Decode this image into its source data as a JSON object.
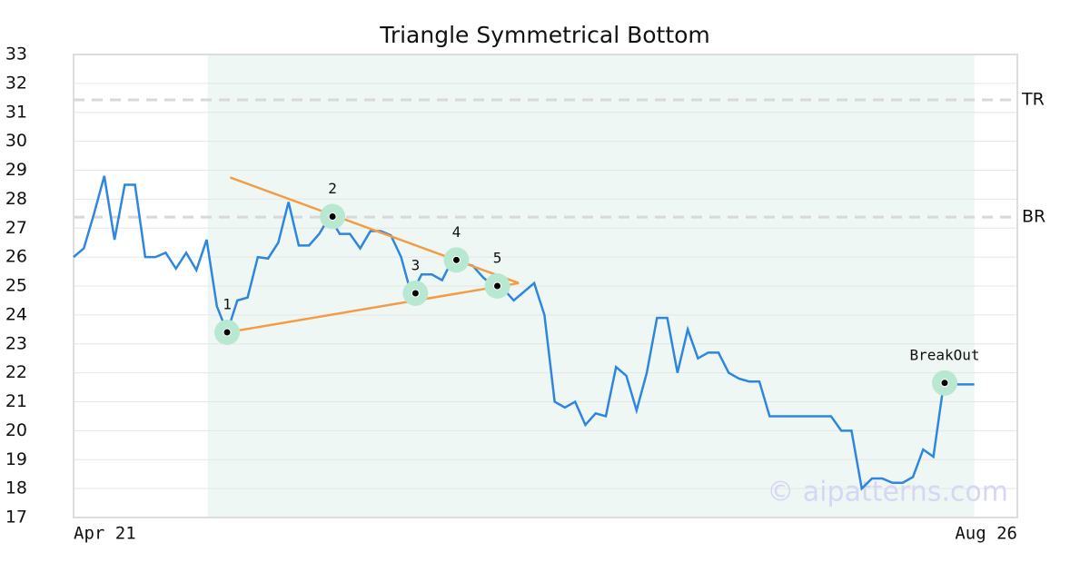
{
  "chart_data": {
    "type": "line",
    "title": "Triangle Symmetrical Bottom",
    "x": [
      0,
      1,
      2,
      3,
      4,
      5,
      6,
      7,
      8,
      9,
      10,
      11,
      12,
      13,
      14,
      15,
      16,
      17,
      18,
      19,
      20,
      21,
      22,
      23,
      24,
      25,
      26,
      27,
      28,
      29,
      30,
      31,
      32,
      33,
      34,
      35,
      36,
      37,
      38,
      39,
      40,
      41,
      42,
      43,
      44,
      45,
      46,
      47,
      48,
      49,
      50,
      51,
      52,
      53,
      54,
      55,
      56,
      57,
      58,
      59,
      60,
      61,
      62,
      63,
      64,
      65,
      66,
      67,
      68,
      69,
      70,
      71,
      72,
      73,
      74,
      75,
      76,
      77,
      78,
      79,
      80,
      81,
      82,
      83,
      84,
      85,
      86,
      87,
      88
    ],
    "values": [
      26.0,
      26.3,
      27.5,
      28.8,
      26.6,
      28.5,
      28.5,
      26.0,
      26.0,
      26.15,
      25.6,
      26.15,
      25.55,
      26.6,
      24.3,
      23.4,
      24.5,
      24.6,
      26.0,
      25.95,
      26.5,
      27.9,
      26.4,
      26.4,
      26.8,
      27.4,
      26.8,
      26.8,
      26.3,
      26.9,
      26.9,
      26.75,
      26.0,
      24.7,
      25.4,
      25.4,
      25.2,
      25.9,
      25.8,
      25.7,
      25.3,
      25.0,
      24.9,
      24.5,
      24.8,
      25.1,
      24.0,
      21.0,
      20.8,
      21.0,
      20.2,
      20.6,
      20.5,
      22.2,
      21.9,
      20.7,
      22.0,
      23.9,
      23.9,
      22.0,
      23.5,
      22.5,
      22.7,
      22.7,
      22.0,
      21.8,
      21.7,
      21.7,
      20.5,
      20.5,
      20.5,
      20.5,
      20.5,
      20.5,
      20.5,
      20.0,
      20.0,
      18.0,
      18.35,
      18.35,
      18.2,
      18.2,
      18.4,
      19.35,
      19.1,
      21.6,
      21.6,
      21.6,
      21.6
    ],
    "color": "#2e86de",
    "xlim": [
      0,
      92.2
    ],
    "xticks": [
      {
        "value": 0,
        "label": "Apr 21"
      },
      {
        "value": 92.2,
        "label": "Aug 26"
      }
    ],
    "ylim": [
      17,
      33
    ],
    "yticks": [
      17,
      18,
      19,
      20,
      21,
      22,
      23,
      24,
      25,
      26,
      27,
      28,
      29,
      30,
      31,
      32,
      33
    ],
    "grid": true,
    "shade": [
      13.1,
      88
    ],
    "shade_color": "#eef7f3",
    "levels": [
      {
        "label": "TR",
        "value": 31.43
      },
      {
        "label": "BR",
        "value": 27.38
      }
    ],
    "trendlines": [
      {
        "x": [
          15.3,
          43.5
        ],
        "values": [
          28.75,
          25.1
        ]
      },
      {
        "x": [
          15.0,
          43.5
        ],
        "values": [
          23.4,
          25.1
        ]
      }
    ],
    "trend_color": "#f39c43",
    "points": [
      {
        "label": "1",
        "x": 15.0,
        "value": 23.4
      },
      {
        "label": "2",
        "x": 25.3,
        "value": 27.4
      },
      {
        "label": "3",
        "x": 33.4,
        "value": 24.75
      },
      {
        "label": "4",
        "x": 37.4,
        "value": 25.9
      },
      {
        "label": "5",
        "x": 41.4,
        "value": 25.0
      },
      {
        "label": "BreakOut",
        "x": 85.1,
        "value": 21.65
      }
    ],
    "point_color": "#b9e8d2",
    "watermark": "© aipatterns.com"
  }
}
